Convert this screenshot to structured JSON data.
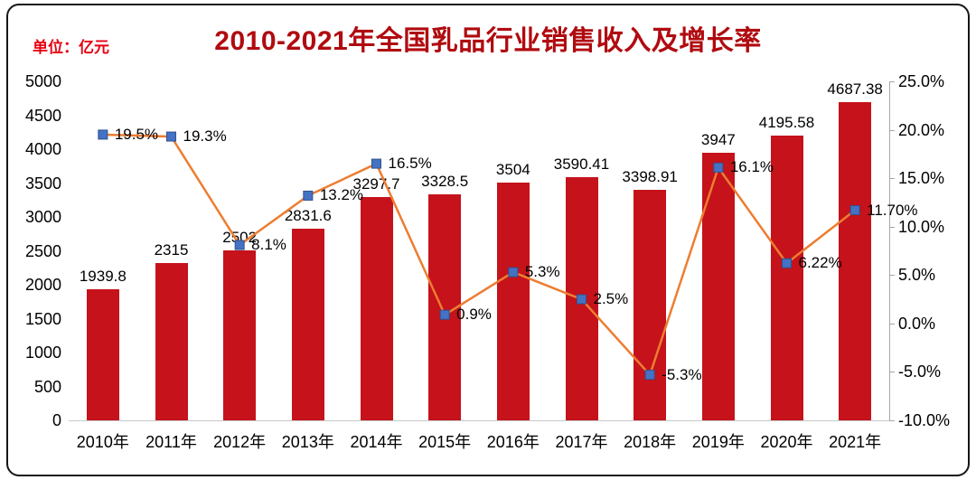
{
  "chart_data": {
    "type": "bar-line",
    "title": "2010-2021年全国乳品行业销售收入及增长率",
    "unit_label": "单位：亿元",
    "categories": [
      "2010年",
      "2011年",
      "2012年",
      "2013年",
      "2014年",
      "2015年",
      "2016年",
      "2017年",
      "2018年",
      "2019年",
      "2020年",
      "2021年"
    ],
    "bar_series": {
      "axis": "left",
      "values": [
        1939.8,
        2315,
        2502,
        2831.6,
        3297.7,
        3328.5,
        3504,
        3590.41,
        3398.91,
        3947,
        4195.58,
        4687.38
      ],
      "labels": [
        "1939.8",
        "2315",
        "2502",
        "2831.6",
        "3297.7",
        "3328.5",
        "3504",
        "3590.41",
        "3398.91",
        "3947",
        "4195.58",
        "4687.38"
      ]
    },
    "line_series": {
      "axis": "right",
      "values": [
        19.5,
        19.3,
        8.1,
        13.2,
        16.5,
        0.9,
        5.3,
        2.5,
        -5.3,
        16.1,
        6.22,
        11.7
      ],
      "labels": [
        "19.5%",
        "19.3%",
        "8.1%",
        "13.2%",
        "16.5%",
        "0.9%",
        "5.3%",
        "2.5%",
        "-5.3%",
        "16.1%",
        "6.22%",
        "11.70%"
      ]
    },
    "left_axis": {
      "min": 0,
      "max": 5000,
      "step": 500,
      "tick_labels": [
        "0",
        "500",
        "1000",
        "1500",
        "2000",
        "2500",
        "3000",
        "3500",
        "4000",
        "4500",
        "5000"
      ]
    },
    "right_axis": {
      "min": -10,
      "max": 25,
      "step": 5,
      "tick_labels": [
        "-10.0%",
        "-5.0%",
        "0.0%",
        "5.0%",
        "10.0%",
        "15.0%",
        "20.0%",
        "25.0%"
      ]
    },
    "colors": {
      "bar": "#c5121b",
      "line": "#ed7d31",
      "marker": "#4472c4",
      "marker_border": "#2f528f",
      "title": "#b00b10",
      "unit": "#e60012",
      "axis_line": "#a6a6a6",
      "label": "#000000"
    },
    "legend": "none",
    "grid": "off"
  }
}
